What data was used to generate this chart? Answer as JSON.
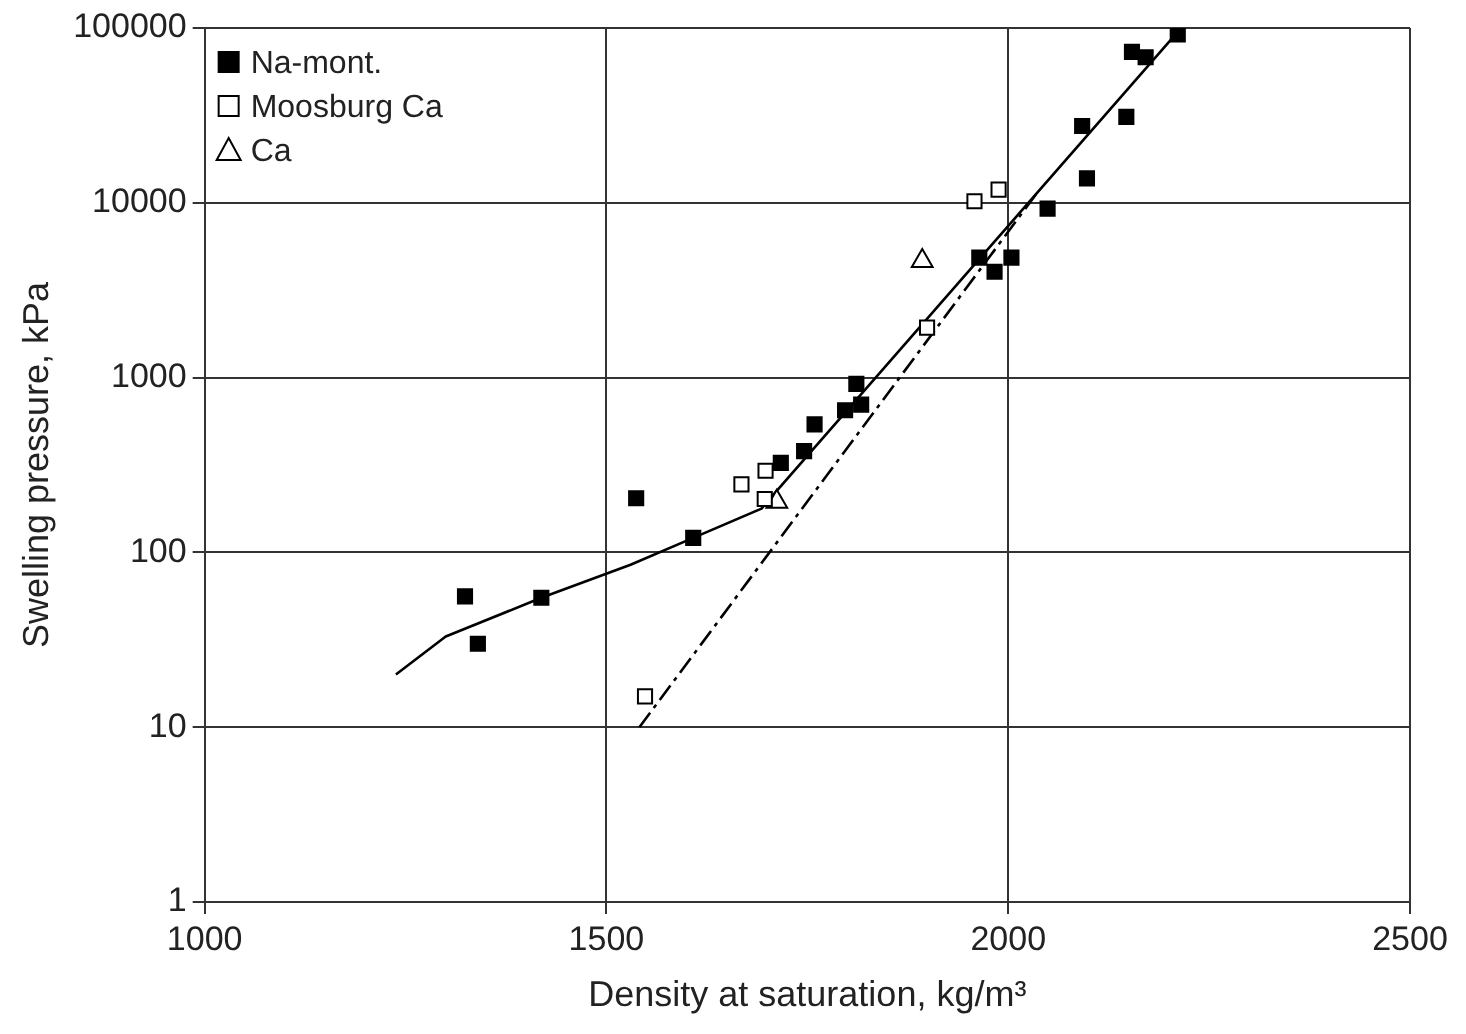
{
  "chart_data": {
    "type": "scatter",
    "xlabel": "Density at saturation, kg/m³",
    "ylabel": "Swelling pressure, kPa",
    "log": "y",
    "grid": true,
    "legend": "top left",
    "xlim": [
      1000,
      2500
    ],
    "xticks": [
      1000,
      1500,
      2000,
      2500
    ],
    "ylim": [
      1,
      100000
    ],
    "yticks": [
      1,
      10,
      100,
      1000,
      10000,
      100000
    ],
    "series": [
      {
        "name": "Na-mont.",
        "marker": "square",
        "color": "#000000",
        "x": [
          1324,
          1340,
          1419,
          1537,
          1608,
          1717,
          1746,
          1759,
          1797,
          1811,
          1817,
          1964,
          1983,
          2004,
          2049,
          2092,
          2098,
          2147,
          2154,
          2171,
          2211
        ],
        "values": [
          56,
          30,
          55,
          204,
          121,
          325,
          380,
          540,
          650,
          920,
          700,
          4860,
          4030,
          4860,
          9260,
          27500,
          13800,
          31000,
          73000,
          68000,
          92000
        ]
      },
      {
        "name": "Moosburg Ca",
        "marker": "square",
        "color": "#000000",
        "x": [
          1548,
          1668,
          1698,
          1697,
          1899,
          1958,
          1988
        ],
        "values": [
          15,
          245,
          293,
          202,
          1930,
          10200,
          11900
        ]
      },
      {
        "name": "Ca",
        "marker": "triangle",
        "color": "#000000",
        "x": [
          1712,
          1893
        ],
        "values": [
          195,
          4650
        ]
      },
      {
        "type": "line",
        "line_style": "solid",
        "marker": "none",
        "color": "#000000",
        "x": [
          1238,
          1300,
          1419,
          1530,
          1608,
          1693,
          1710,
          2211
        ],
        "values": [
          20,
          33,
          55,
          85,
          121,
          178,
          220,
          95000
        ]
      },
      {
        "type": "line",
        "line_style": "dashed",
        "marker": "none",
        "color": "#000000",
        "x": [
          1541,
          2036
        ],
        "values": [
          10,
          11400
        ]
      }
    ]
  }
}
